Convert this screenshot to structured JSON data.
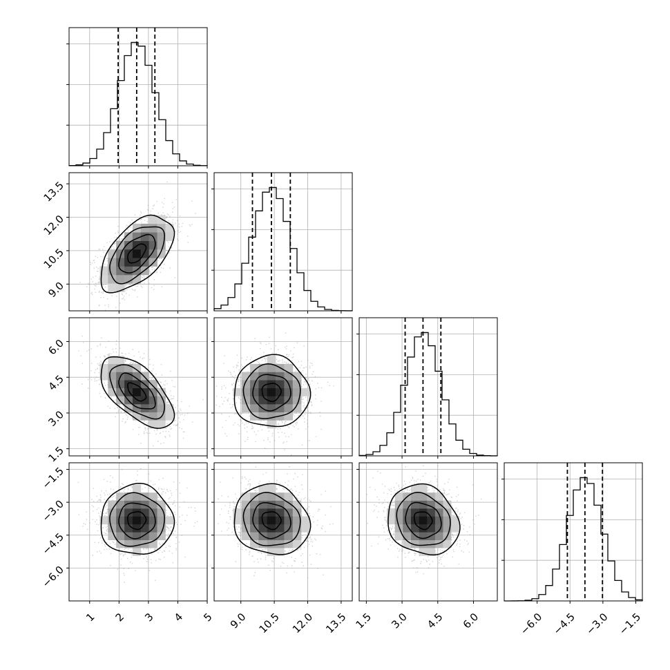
{
  "chart_data": {
    "type": "corner",
    "parameters": [
      {
        "mean": 2.6,
        "sd": 0.62,
        "range": [
          0.3,
          5.0
        ],
        "ticks": [
          "1",
          "2",
          "3",
          "4",
          "5"
        ],
        "tick_values": [
          1,
          2,
          3,
          4,
          5
        ],
        "quantiles": [
          1.97,
          2.6,
          3.22
        ]
      },
      {
        "mean": 10.37,
        "sd": 0.85,
        "range": [
          7.8,
          14.0
        ],
        "ticks": [
          "9.0",
          "10.5",
          "12.0",
          "13.5"
        ],
        "tick_values": [
          9.0,
          10.5,
          12.0,
          13.5
        ],
        "quantiles": [
          9.52,
          10.37,
          11.22
        ]
      },
      {
        "mean": 3.88,
        "sd": 0.75,
        "range": [
          1.2,
          7.0
        ],
        "ticks": [
          "1.5",
          "3.0",
          "4.5",
          "6.0"
        ],
        "tick_values": [
          1.5,
          3.0,
          4.5,
          6.0
        ],
        "quantiles": [
          3.13,
          3.88,
          4.63
        ]
      },
      {
        "mean": -3.82,
        "sd": 0.8,
        "range": [
          -7.5,
          -1.2
        ],
        "ticks": [
          "−6.0",
          "−4.5",
          "−3.0",
          "−1.5"
        ],
        "tick_values": [
          -6.0,
          -4.5,
          -3.0,
          -1.5
        ],
        "quantiles": [
          -4.62,
          -3.82,
          -3.02
        ]
      }
    ],
    "correlations": [
      {
        "pair": [
          0,
          1
        ],
        "rho": 0.55
      },
      {
        "pair": [
          0,
          2
        ],
        "rho": -0.6
      },
      {
        "pair": [
          1,
          2
        ],
        "rho": 0.0
      },
      {
        "pair": [
          0,
          3
        ],
        "rho": 0.0
      },
      {
        "pair": [
          1,
          3
        ],
        "rho": -0.1
      },
      {
        "pair": [
          2,
          3
        ],
        "rho": -0.15
      }
    ],
    "histogram_bins": 20,
    "contour_levels_sigma": [
      0.5,
      1.0,
      1.5,
      2.0
    ],
    "grid": true,
    "title": "",
    "xlabel": "",
    "ylabel": ""
  }
}
